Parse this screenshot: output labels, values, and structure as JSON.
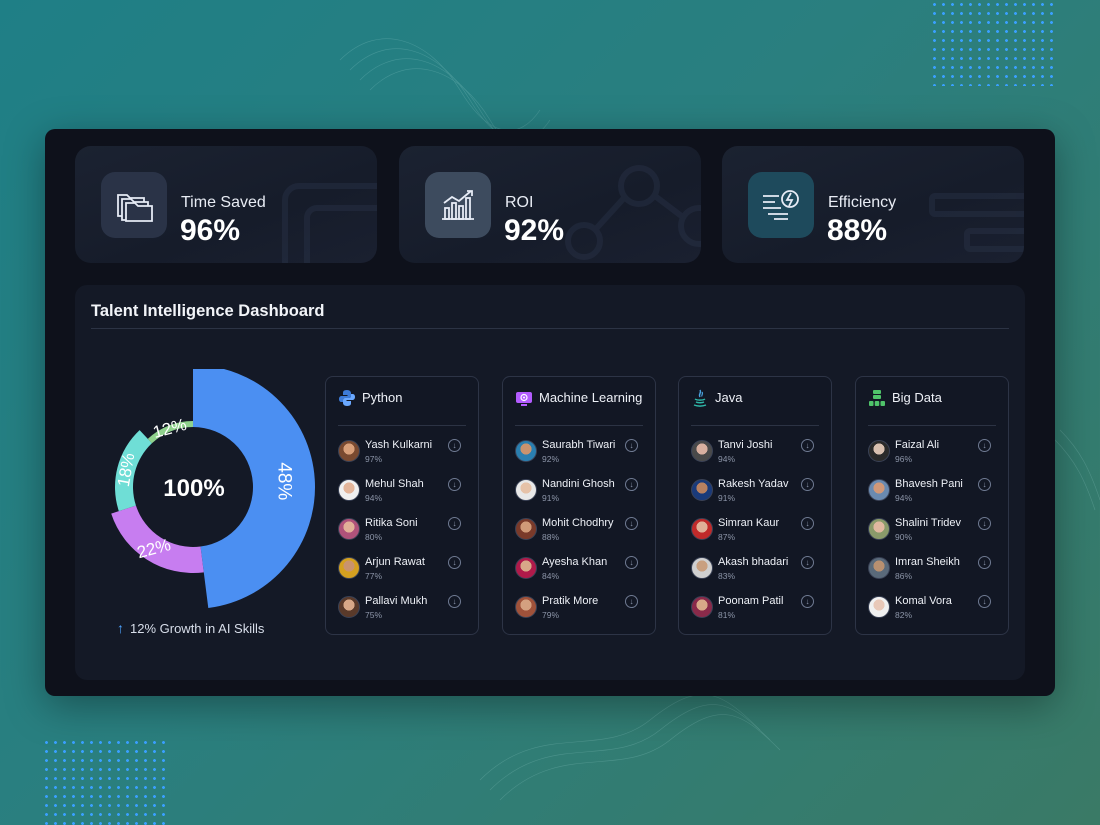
{
  "kpis": [
    {
      "label": "Time Saved",
      "value": "96%",
      "icon": "folders-icon",
      "icon_bg": "#2a3347"
    },
    {
      "label": "ROI",
      "value": "92%",
      "icon": "growth-chart-icon",
      "icon_bg": "#3d4b5e"
    },
    {
      "label": "Efficiency",
      "value": "88%",
      "icon": "lightning-efficiency-icon",
      "icon_bg": "#1e4a5c"
    }
  ],
  "dashboard": {
    "title": "Talent Intelligence Dashboard",
    "donut_center": "100%",
    "growth_text": "12% Growth in AI Skills",
    "growth_icon": "arrow-up-icon"
  },
  "chart_data": {
    "type": "pie",
    "title": "",
    "slices": [
      {
        "label": "48%",
        "value": 48,
        "color": "#4b8ff2"
      },
      {
        "label": "22%",
        "value": 22,
        "color": "#c77df0"
      },
      {
        "label": "18%",
        "value": 18,
        "color": "#6fded6"
      },
      {
        "label": "12%",
        "value": 12,
        "color": "#8fd18c"
      }
    ],
    "center_label": "100%"
  },
  "skills": [
    {
      "name": "Python",
      "icon": "python-icon",
      "people": [
        {
          "name": "Yash Kulkarni",
          "pct": "97%"
        },
        {
          "name": "Mehul Shah",
          "pct": "94%"
        },
        {
          "name": "Ritika Soni",
          "pct": "80%"
        },
        {
          "name": "Arjun Rawat",
          "pct": "77%"
        },
        {
          "name": "Pallavi Mukh",
          "pct": "75%"
        }
      ]
    },
    {
      "name": "Machine Learning",
      "icon": "machine-learning-icon",
      "people": [
        {
          "name": "Saurabh Tiwari",
          "pct": "92%"
        },
        {
          "name": "Nandini Ghosh",
          "pct": "91%"
        },
        {
          "name": "Mohit Chodhry",
          "pct": "88%"
        },
        {
          "name": "Ayesha Khan",
          "pct": "84%"
        },
        {
          "name": "Pratik More",
          "pct": "79%"
        }
      ]
    },
    {
      "name": "Java",
      "icon": "java-icon",
      "people": [
        {
          "name": "Tanvi Joshi",
          "pct": "94%"
        },
        {
          "name": "Rakesh Yadav",
          "pct": "91%"
        },
        {
          "name": "Simran Kaur",
          "pct": "87%"
        },
        {
          "name": "Akash bhadari",
          "pct": "83%"
        },
        {
          "name": "Poonam Patil",
          "pct": "81%"
        }
      ]
    },
    {
      "name": "Big Data",
      "icon": "big-data-icon",
      "people": [
        {
          "name": "Faizal Ali",
          "pct": "96%"
        },
        {
          "name": "Bhavesh Pani",
          "pct": "94%"
        },
        {
          "name": "Shalini Tridev",
          "pct": "90%"
        },
        {
          "name": "Imran Sheikh",
          "pct": "86%"
        },
        {
          "name": "Komal Vora",
          "pct": "82%"
        }
      ]
    }
  ]
}
